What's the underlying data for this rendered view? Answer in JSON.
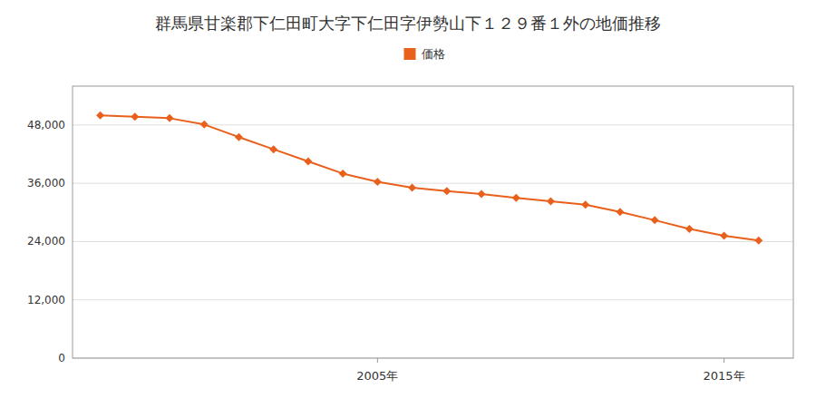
{
  "chart_data": {
    "type": "line",
    "title": "群馬県甘楽郡下仁田町大字下仁田字伊勢山下１２９番１外の地価推移",
    "x": [
      1997,
      1998,
      1999,
      2000,
      2001,
      2002,
      2003,
      2004,
      2005,
      2006,
      2007,
      2008,
      2009,
      2010,
      2011,
      2012,
      2013,
      2014,
      2015,
      2016
    ],
    "series": [
      {
        "name": "価格",
        "color": "#e8601c",
        "marker": "diamond",
        "values": [
          50000,
          49700,
          49400,
          48100,
          45500,
          43000,
          40500,
          38000,
          36300,
          35100,
          34400,
          33800,
          33000,
          32300,
          31600,
          30100,
          28400,
          26600,
          25200,
          24200
        ]
      }
    ],
    "xlim": [
      1996.2,
      2017.0
    ],
    "xticks": [
      {
        "value": 2005,
        "label": "2005年"
      },
      {
        "value": 2015,
        "label": "2015年"
      }
    ],
    "ylim": [
      0,
      56000
    ],
    "yticks": [
      0,
      {
        "value": 12000,
        "label": "12,000"
      },
      {
        "value": 24000,
        "label": "24,000"
      },
      {
        "value": 36000,
        "label": "36,000"
      },
      {
        "value": 48000,
        "label": "48,000"
      }
    ],
    "grid": true,
    "legend": "top"
  }
}
